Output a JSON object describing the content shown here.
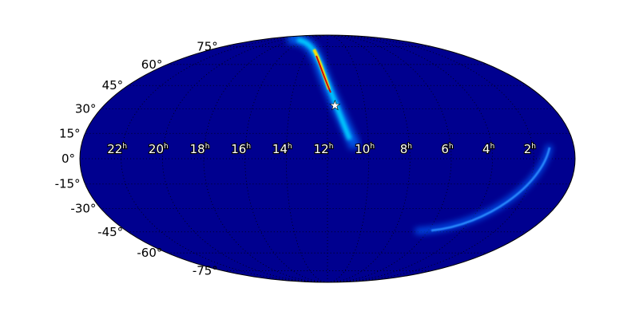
{
  "chart_data": {
    "type": "heatmap",
    "projection": "mollweide",
    "title": "",
    "background_color": "#00008f",
    "colormap": "jet",
    "grid": true,
    "grid_style": "dotted",
    "ra_tick_labels": [
      "22",
      "20",
      "18",
      "16",
      "14",
      "12",
      "10",
      "8",
      "6",
      "4",
      "2"
    ],
    "ra_tick_values_h": [
      22,
      20,
      18,
      16,
      14,
      12,
      10,
      8,
      6,
      4,
      2
    ],
    "ra_unit": "h",
    "dec_tick_labels": [
      "75°",
      "60°",
      "45°",
      "30°",
      "15°",
      "0°",
      "-15°",
      "-30°",
      "-45°",
      "-60°",
      "-75°"
    ],
    "dec_tick_values": [
      75,
      60,
      45,
      30,
      15,
      0,
      -15,
      -30,
      -45,
      -60,
      -75
    ],
    "marker": {
      "symbol": "star",
      "color": "#ffffff",
      "ra_h": 11.6,
      "dec": 32
    },
    "probability_arcs": [
      {
        "peak_ra_h": 11.7,
        "dec_range": [
          5,
          75
        ],
        "peak_color": "#d00000"
      },
      {
        "ra_range_h": [
          1.3,
          7
        ],
        "dec_range": [
          -38,
          0
        ],
        "peak_color": "#2a8cff"
      }
    ]
  }
}
